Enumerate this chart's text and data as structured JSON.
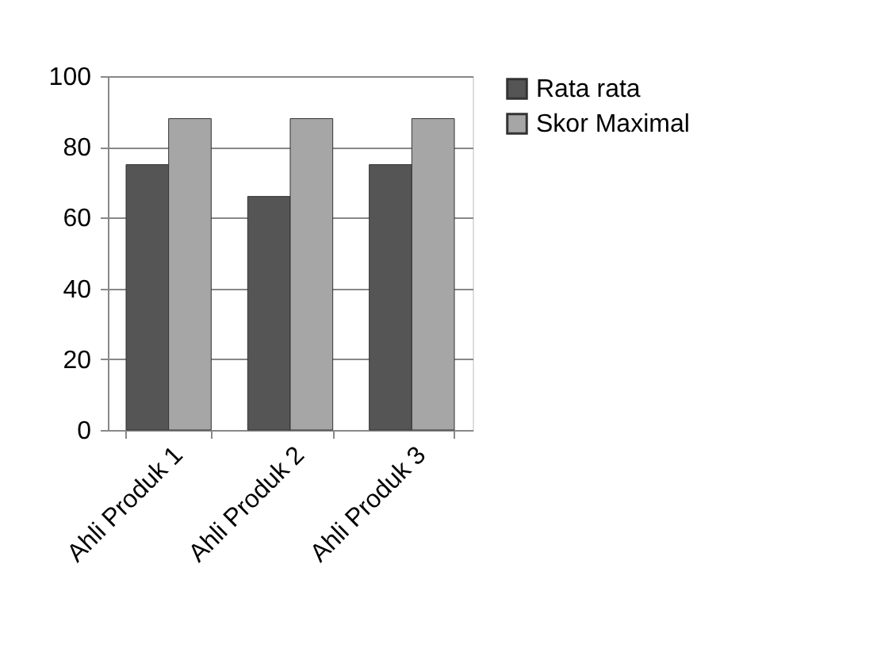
{
  "chart_data": {
    "type": "bar",
    "categories": [
      "Ahli Produk 1",
      "Ahli Produk 2",
      "Ahli Produk 3"
    ],
    "series": [
      {
        "name": "Rata rata",
        "color": "#555555",
        "values": [
          75,
          66,
          75
        ]
      },
      {
        "name": "Skor Maximal",
        "color": "#a6a6a6",
        "values": [
          88,
          88,
          88
        ]
      }
    ],
    "ylim": [
      0,
      100
    ],
    "yticks": [
      0,
      20,
      40,
      60,
      80,
      100
    ],
    "grid": "y",
    "legend": "right"
  }
}
